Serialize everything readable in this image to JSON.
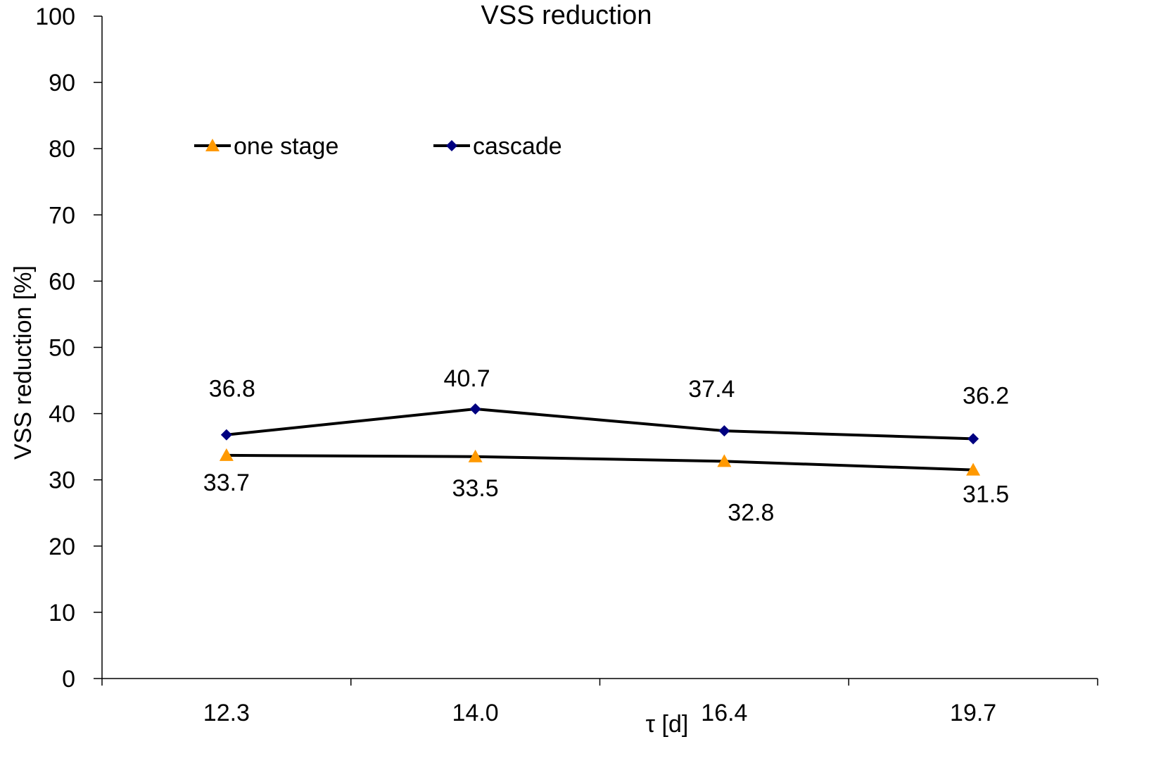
{
  "chart_data": {
    "type": "line",
    "title": "VSS reduction",
    "xlabel": "τ [d]",
    "ylabel": "VSS reduction [%]",
    "categories": [
      "12.3",
      "14.0",
      "16.4",
      "19.7"
    ],
    "ylim": [
      0,
      100
    ],
    "yticks": [
      "0",
      "10",
      "20",
      "30",
      "40",
      "50",
      "60",
      "70",
      "80",
      "90",
      "100"
    ],
    "grid": false,
    "legend_position": "top-left",
    "series": [
      {
        "name": "one stage",
        "values": [
          33.7,
          33.5,
          32.8,
          31.5
        ],
        "labels": [
          "33.7",
          "33.5",
          "32.8",
          "31.5"
        ],
        "marker": "triangle",
        "marker_color": "#FF9900",
        "line_color": "#000000"
      },
      {
        "name": "cascade",
        "values": [
          36.8,
          40.7,
          37.4,
          36.2
        ],
        "labels": [
          "36.8",
          "40.7",
          "37.4",
          "36.2"
        ],
        "marker": "diamond",
        "marker_color": "#000080",
        "line_color": "#000000"
      }
    ]
  }
}
